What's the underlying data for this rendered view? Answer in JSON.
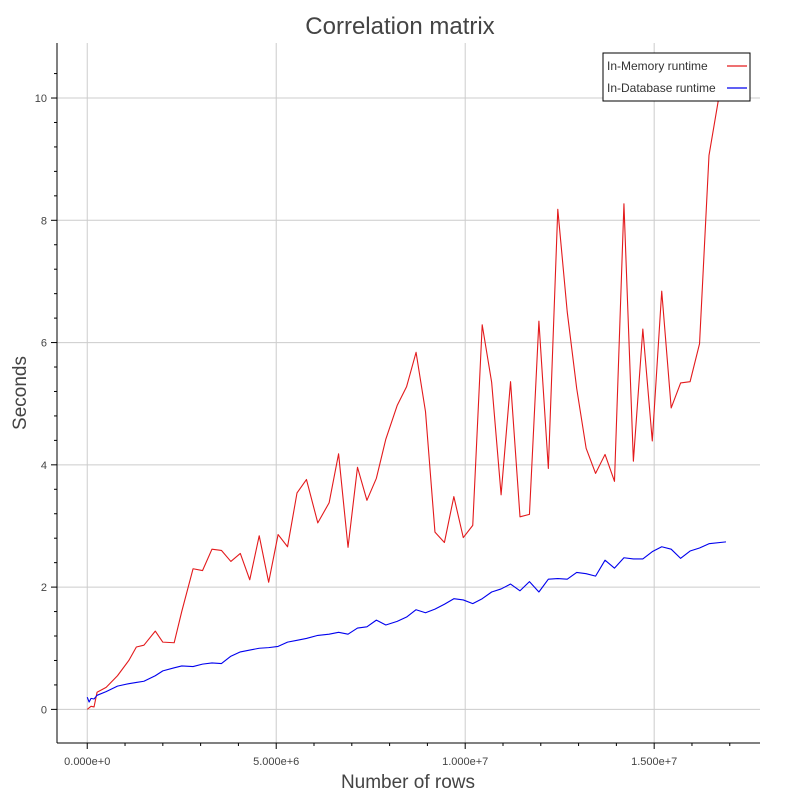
{
  "chart_data": {
    "type": "line",
    "title": "Correlation matrix",
    "xlabel": "Number of rows",
    "ylabel": "Seconds",
    "xlim": [
      -800000,
      17800000
    ],
    "ylim": [
      -0.55,
      10.9
    ],
    "x_ticks": [
      0,
      5000000,
      10000000,
      15000000
    ],
    "x_tick_labels": [
      "0.000e+0",
      "5.000e+6",
      "1.000e+7",
      "1.500e+7"
    ],
    "y_ticks": [
      0,
      2,
      4,
      6,
      8,
      10
    ],
    "y_tick_labels": [
      "0",
      "2",
      "4",
      "6",
      "8",
      "10"
    ],
    "grid": true,
    "legend_position": "top-right",
    "series": [
      {
        "name": "In-Memory runtime",
        "color": "#e31a1c",
        "points": [
          [
            0,
            0.0
          ],
          [
            100000,
            0.05
          ],
          [
            180000,
            0.04
          ],
          [
            260000,
            0.28
          ],
          [
            500000,
            0.36
          ],
          [
            800000,
            0.55
          ],
          [
            1100000,
            0.8
          ],
          [
            1300000,
            1.02
          ],
          [
            1500000,
            1.05
          ],
          [
            1800000,
            1.28
          ],
          [
            2000000,
            1.1
          ],
          [
            2300000,
            1.09
          ],
          [
            2500000,
            1.6
          ],
          [
            2800000,
            2.3
          ],
          [
            3050000,
            2.27
          ],
          [
            3300000,
            2.62
          ],
          [
            3550000,
            2.6
          ],
          [
            3800000,
            2.42
          ],
          [
            4050000,
            2.55
          ],
          [
            4300000,
            2.12
          ],
          [
            4550000,
            2.84
          ],
          [
            4800000,
            2.08
          ],
          [
            5050000,
            2.86
          ],
          [
            5300000,
            2.66
          ],
          [
            5550000,
            3.54
          ],
          [
            5800000,
            3.76
          ],
          [
            6100000,
            3.05
          ],
          [
            6400000,
            3.38
          ],
          [
            6650000,
            4.18
          ],
          [
            6900000,
            2.65
          ],
          [
            7150000,
            3.96
          ],
          [
            7400000,
            3.42
          ],
          [
            7650000,
            3.78
          ],
          [
            7900000,
            4.42
          ],
          [
            8200000,
            4.97
          ],
          [
            8450000,
            5.28
          ],
          [
            8700000,
            5.84
          ],
          [
            8950000,
            4.87
          ],
          [
            9200000,
            2.9
          ],
          [
            9450000,
            2.73
          ],
          [
            9700000,
            3.48
          ],
          [
            9950000,
            2.81
          ],
          [
            10200000,
            3.01
          ],
          [
            10450000,
            6.29
          ],
          [
            10700000,
            5.35
          ],
          [
            10950000,
            3.51
          ],
          [
            11200000,
            5.36
          ],
          [
            11450000,
            3.15
          ],
          [
            11700000,
            3.19
          ],
          [
            11950000,
            6.35
          ],
          [
            12200000,
            3.94
          ],
          [
            12450000,
            8.18
          ],
          [
            12700000,
            6.5
          ],
          [
            12950000,
            5.25
          ],
          [
            13200000,
            4.27
          ],
          [
            13450000,
            3.86
          ],
          [
            13700000,
            4.17
          ],
          [
            13950000,
            3.73
          ],
          [
            14200000,
            8.27
          ],
          [
            14450000,
            4.06
          ],
          [
            14700000,
            6.22
          ],
          [
            14950000,
            4.39
          ],
          [
            15200000,
            6.84
          ],
          [
            15450000,
            4.93
          ],
          [
            15700000,
            5.34
          ],
          [
            15950000,
            5.36
          ],
          [
            16200000,
            5.98
          ],
          [
            16450000,
            9.06
          ],
          [
            16900000,
            10.7
          ]
        ]
      },
      {
        "name": "In-Database runtime",
        "color": "#0000ee",
        "points": [
          [
            0,
            0.2
          ],
          [
            50000,
            0.12
          ],
          [
            100000,
            0.18
          ],
          [
            180000,
            0.17
          ],
          [
            260000,
            0.23
          ],
          [
            500000,
            0.29
          ],
          [
            800000,
            0.38
          ],
          [
            1100000,
            0.42
          ],
          [
            1300000,
            0.44
          ],
          [
            1500000,
            0.46
          ],
          [
            1800000,
            0.55
          ],
          [
            2000000,
            0.63
          ],
          [
            2300000,
            0.68
          ],
          [
            2500000,
            0.71
          ],
          [
            2800000,
            0.7
          ],
          [
            3050000,
            0.74
          ],
          [
            3300000,
            0.76
          ],
          [
            3550000,
            0.75
          ],
          [
            3800000,
            0.87
          ],
          [
            4050000,
            0.94
          ],
          [
            4300000,
            0.97
          ],
          [
            4550000,
            1.0
          ],
          [
            4800000,
            1.01
          ],
          [
            5050000,
            1.03
          ],
          [
            5300000,
            1.1
          ],
          [
            5550000,
            1.13
          ],
          [
            5800000,
            1.16
          ],
          [
            6100000,
            1.21
          ],
          [
            6400000,
            1.23
          ],
          [
            6650000,
            1.26
          ],
          [
            6900000,
            1.23
          ],
          [
            7150000,
            1.33
          ],
          [
            7400000,
            1.35
          ],
          [
            7650000,
            1.46
          ],
          [
            7900000,
            1.38
          ],
          [
            8200000,
            1.44
          ],
          [
            8450000,
            1.51
          ],
          [
            8700000,
            1.63
          ],
          [
            8950000,
            1.58
          ],
          [
            9200000,
            1.64
          ],
          [
            9450000,
            1.72
          ],
          [
            9700000,
            1.81
          ],
          [
            9950000,
            1.79
          ],
          [
            10200000,
            1.73
          ],
          [
            10450000,
            1.81
          ],
          [
            10700000,
            1.92
          ],
          [
            10950000,
            1.97
          ],
          [
            11200000,
            2.05
          ],
          [
            11450000,
            1.94
          ],
          [
            11700000,
            2.09
          ],
          [
            11950000,
            1.92
          ],
          [
            12200000,
            2.13
          ],
          [
            12450000,
            2.14
          ],
          [
            12700000,
            2.13
          ],
          [
            12950000,
            2.24
          ],
          [
            13200000,
            2.22
          ],
          [
            13450000,
            2.18
          ],
          [
            13700000,
            2.44
          ],
          [
            13950000,
            2.31
          ],
          [
            14200000,
            2.48
          ],
          [
            14450000,
            2.46
          ],
          [
            14700000,
            2.46
          ],
          [
            14950000,
            2.58
          ],
          [
            15200000,
            2.66
          ],
          [
            15450000,
            2.62
          ],
          [
            15700000,
            2.47
          ],
          [
            15950000,
            2.59
          ],
          [
            16200000,
            2.64
          ],
          [
            16450000,
            2.71
          ],
          [
            16900000,
            2.74
          ]
        ]
      }
    ]
  }
}
